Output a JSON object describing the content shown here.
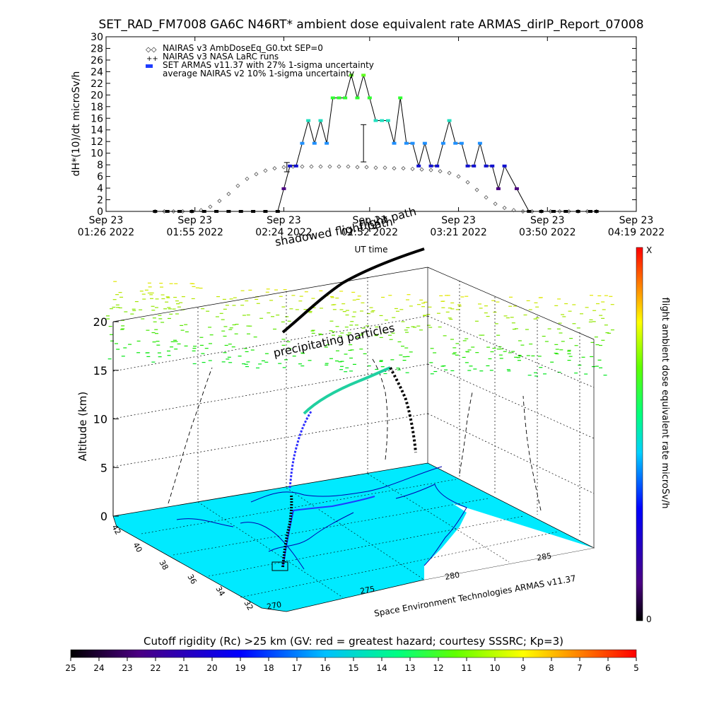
{
  "title": "SET_RAD_FM7008  GA6C N46RT* ambient dose equivalent rate ARMAS_dirIP_Report_07008",
  "chart_data": [
    {
      "type": "line",
      "ylabel": "dH*(10)/dt microSv/h",
      "xlabel": "UT time",
      "ylim": [
        0,
        30
      ],
      "yticks": [
        0,
        2,
        4,
        6,
        8,
        10,
        12,
        14,
        16,
        18,
        20,
        22,
        24,
        26,
        28,
        30
      ],
      "xlim_minutes": [
        0,
        173
      ],
      "xticks": [
        {
          "m": 0,
          "l1": "Sep 23",
          "l2": "01:26 2022"
        },
        {
          "m": 29,
          "l1": "Sep 23",
          "l2": "01:55 2022"
        },
        {
          "m": 58,
          "l1": "Sep 23",
          "l2": "02:24 2022"
        },
        {
          "m": 86,
          "l1": "Sep 23",
          "l2": "02:52 2022"
        },
        {
          "m": 115,
          "l1": "Sep 23",
          "l2": "03:21 2022"
        },
        {
          "m": 144,
          "l1": "Sep 23",
          "l2": "03:50 2022"
        },
        {
          "m": 173,
          "l1": "Sep 23",
          "l2": "04:19 2022"
        }
      ],
      "legend": [
        "NAIRAS v3 AmbDoseEq_G0.txt SEP=0",
        "NAIRAS v3 NASA LaRC runs",
        "SET ARMAS v11.37 with 27% 1-sigma uncertainty",
        "average NAIRAS v2 10% 1-sigma uncertainty"
      ],
      "series": [
        {
          "name": "NAIRAS v3 AmbDoseEq_G0.txt SEP=0",
          "x": [
            16,
            19,
            22,
            25,
            28,
            31,
            34,
            37,
            40,
            43,
            46,
            49,
            52,
            55,
            58,
            61,
            64,
            67,
            70,
            73,
            76,
            79,
            82,
            85,
            88,
            91,
            94,
            97,
            100,
            103,
            106,
            109,
            112,
            115,
            118,
            121,
            124,
            127,
            130,
            133,
            136,
            139,
            142,
            145,
            148,
            151,
            154,
            157,
            160
          ],
          "y": [
            0,
            0,
            0,
            0,
            0,
            0.2,
            0.8,
            1.8,
            3.0,
            4.4,
            5.6,
            6.4,
            7.0,
            7.4,
            7.6,
            7.7,
            7.7,
            7.7,
            7.7,
            7.7,
            7.7,
            7.7,
            7.6,
            7.6,
            7.5,
            7.5,
            7.4,
            7.4,
            7.3,
            7.2,
            7.1,
            6.9,
            6.6,
            6.0,
            5.0,
            3.7,
            2.4,
            1.3,
            0.6,
            0.2,
            0,
            0,
            0,
            0,
            0,
            0,
            0,
            0,
            0
          ]
        },
        {
          "name": "SET ARMAS v11.37 with 27% 1-sigma uncertainty",
          "x": [
            16,
            20,
            24,
            28,
            32,
            36,
            40,
            44,
            48,
            52,
            56,
            58,
            60,
            62,
            64,
            66,
            68,
            70,
            72,
            74,
            76,
            78,
            80,
            82,
            84,
            86,
            88,
            90,
            92,
            94,
            96,
            98,
            100,
            102,
            104,
            106,
            108,
            110,
            112,
            114,
            116,
            118,
            120,
            122,
            124,
            126,
            128,
            130,
            134,
            138,
            142,
            146,
            150,
            154,
            158,
            160
          ],
          "y": [
            0,
            0,
            0,
            0,
            0,
            0,
            0,
            0,
            0,
            0,
            0,
            3.9,
            7.8,
            7.8,
            11.7,
            15.6,
            11.7,
            15.6,
            11.7,
            19.5,
            19.5,
            19.5,
            23.4,
            19.5,
            23.4,
            19.5,
            15.6,
            15.6,
            15.6,
            11.7,
            19.5,
            11.7,
            11.7,
            7.8,
            11.7,
            7.8,
            7.8,
            11.7,
            15.6,
            11.7,
            11.7,
            7.8,
            7.8,
            11.7,
            7.8,
            7.8,
            3.9,
            7.8,
            3.9,
            0,
            0,
            0,
            0,
            0,
            0,
            0
          ]
        }
      ],
      "errorbars": [
        {
          "x": 59,
          "y": 7.6,
          "err": 0.8
        },
        {
          "x": 84,
          "y": 11.7,
          "err": 3.2
        }
      ]
    },
    {
      "type": "3d-trajectory",
      "ylabel": "Altitude (km)",
      "zticks": [
        0,
        5,
        10,
        15,
        20
      ],
      "lat_ticks": [
        "42",
        "40",
        "38",
        "36",
        "34",
        "32"
      ],
      "lon_ticks": [
        "270",
        "275",
        "280",
        "285"
      ],
      "annotations": [
        "flight path",
        "shadowed flight path",
        "precipitating particles"
      ],
      "colorbar_label": "flight ambient dose equivalent rate microSv/h",
      "colorbar_max_label": "X",
      "colorbar_min_label": "0",
      "credit": "Space Environment Technologies ARMAS v11.37"
    },
    {
      "type": "colorbar",
      "title": "Cutoff rigidity (Rc) >25 km (GV: red = greatest hazard; courtesy SSSRC; Kp=3)",
      "ticks": [
        "25",
        "24",
        "23",
        "22",
        "21",
        "20",
        "19",
        "18",
        "17",
        "16",
        "15",
        "14",
        "13",
        "12",
        "11",
        "10",
        "9",
        "8",
        "7",
        "6",
        "5"
      ]
    }
  ]
}
